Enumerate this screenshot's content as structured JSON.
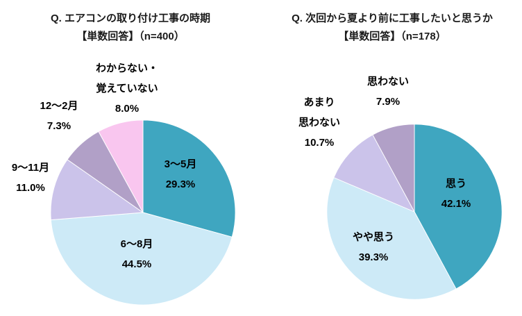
{
  "chart_data": [
    {
      "type": "pie",
      "title": "Q. エアコンの取り付け工事の時期【単数回答】(n=400)",
      "title_lines": [
        "Q. エアコンの取り付け工事の時期",
        "【単数回答】（n=400）"
      ],
      "sample_size": "n=400",
      "start_angle_deg": 0,
      "direction": "clockwise",
      "legend": "none",
      "slices": [
        {
          "label": "3〜5月",
          "label_lines": [
            "3〜5月"
          ],
          "value": 29.3,
          "value_label": "29.3%",
          "color": "#3FA6C0",
          "label_placement": "inside"
        },
        {
          "label": "6〜8月",
          "label_lines": [
            "6〜8月"
          ],
          "value": 44.5,
          "value_label": "44.5%",
          "color": "#CDEAF7",
          "label_placement": "inside"
        },
        {
          "label": "9〜11月",
          "label_lines": [
            "9〜11月"
          ],
          "value": 11.0,
          "value_label": "11.0%",
          "color": "#CBC3EA",
          "label_placement": "outside"
        },
        {
          "label": "12〜2月",
          "label_lines": [
            "12〜2月"
          ],
          "value": 7.3,
          "value_label": "7.3%",
          "color": "#B1A0C7",
          "label_placement": "outside"
        },
        {
          "label": "わからない・覚えていない",
          "label_lines": [
            "わからない・",
            "覚えていない"
          ],
          "value": 8.0,
          "value_label": "8.0%",
          "color": "#F9C6EF",
          "label_placement": "outside"
        }
      ]
    },
    {
      "type": "pie",
      "title": "Q. 次回から夏より前に工事したいと思うか【単数回答】(n=178)",
      "title_lines": [
        "Q. 次回から夏より前に工事したいと思うか",
        "【単数回答】（n=178）"
      ],
      "sample_size": "n=178",
      "start_angle_deg": 0,
      "direction": "clockwise",
      "legend": "none",
      "slices": [
        {
          "label": "思う",
          "label_lines": [
            "思う"
          ],
          "value": 42.1,
          "value_label": "42.1%",
          "color": "#3FA6C0",
          "label_placement": "inside"
        },
        {
          "label": "やや思う",
          "label_lines": [
            "やや思う"
          ],
          "value": 39.3,
          "value_label": "39.3%",
          "color": "#CDEAF7",
          "label_placement": "inside"
        },
        {
          "label": "あまり思わない",
          "label_lines": [
            "あまり",
            "思わない"
          ],
          "value": 10.7,
          "value_label": "10.7%",
          "color": "#CBC3EA",
          "label_placement": "outside"
        },
        {
          "label": "思わない",
          "label_lines": [
            "思わない"
          ],
          "value": 7.9,
          "value_label": "7.9%",
          "color": "#B1A0C7",
          "label_placement": "outside"
        }
      ]
    }
  ]
}
